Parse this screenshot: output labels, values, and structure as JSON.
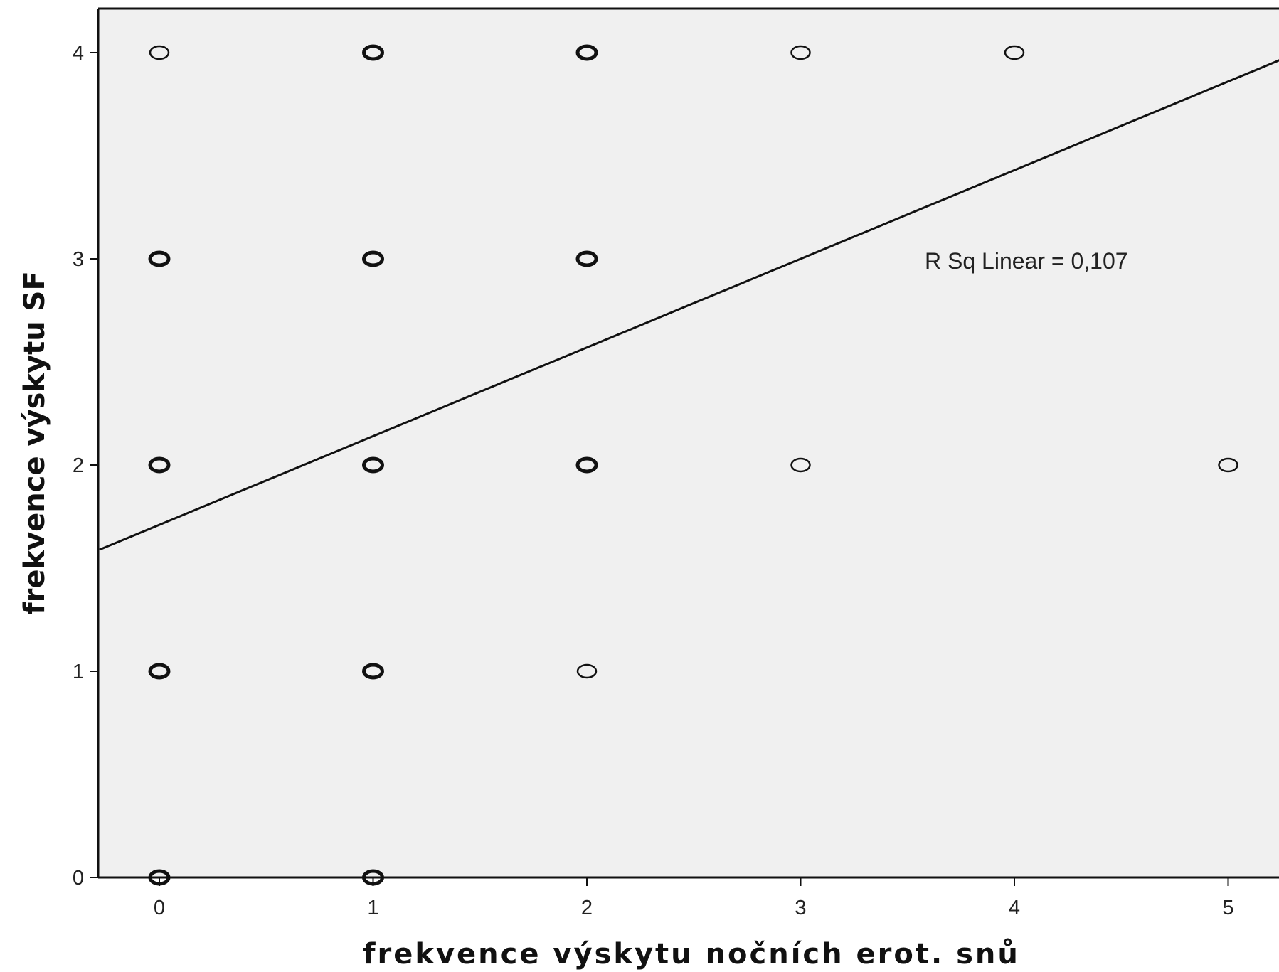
{
  "chart_data": {
    "type": "scatter",
    "title": "",
    "xlabel": "frekvence výskytu nočních erot. snů",
    "ylabel": "frekvence výskytu SF",
    "xlim": [
      -0.28,
      5.25
    ],
    "ylim": [
      0,
      4.2
    ],
    "x_ticks": [
      0,
      1,
      2,
      3,
      4,
      5
    ],
    "y_ticks": [
      0,
      1,
      2,
      3,
      4
    ],
    "grid": false,
    "points": [
      {
        "x": 0,
        "y": 4,
        "bold": false
      },
      {
        "x": 1,
        "y": 4,
        "bold": true
      },
      {
        "x": 2,
        "y": 4,
        "bold": true
      },
      {
        "x": 3,
        "y": 4,
        "bold": false
      },
      {
        "x": 4,
        "y": 4,
        "bold": false
      },
      {
        "x": 0,
        "y": 3,
        "bold": true
      },
      {
        "x": 1,
        "y": 3,
        "bold": true
      },
      {
        "x": 2,
        "y": 3,
        "bold": true
      },
      {
        "x": 0,
        "y": 2,
        "bold": true
      },
      {
        "x": 1,
        "y": 2,
        "bold": true
      },
      {
        "x": 2,
        "y": 2,
        "bold": true
      },
      {
        "x": 3,
        "y": 2,
        "bold": false
      },
      {
        "x": 5,
        "y": 2,
        "bold": false
      },
      {
        "x": 0,
        "y": 1,
        "bold": true
      },
      {
        "x": 1,
        "y": 1,
        "bold": true
      },
      {
        "x": 2,
        "y": 1,
        "bold": false
      },
      {
        "x": 0,
        "y": 0,
        "bold": true
      },
      {
        "x": 1,
        "y": 0,
        "bold": true
      }
    ],
    "fit_line": {
      "intercept": 1.71,
      "slope": 0.43
    },
    "annotation": "R Sq Linear = 0,107",
    "colors": {
      "plot_background": "#f0f0f0",
      "marker": "#111111",
      "line": "#111111",
      "axis": "#111111"
    }
  }
}
